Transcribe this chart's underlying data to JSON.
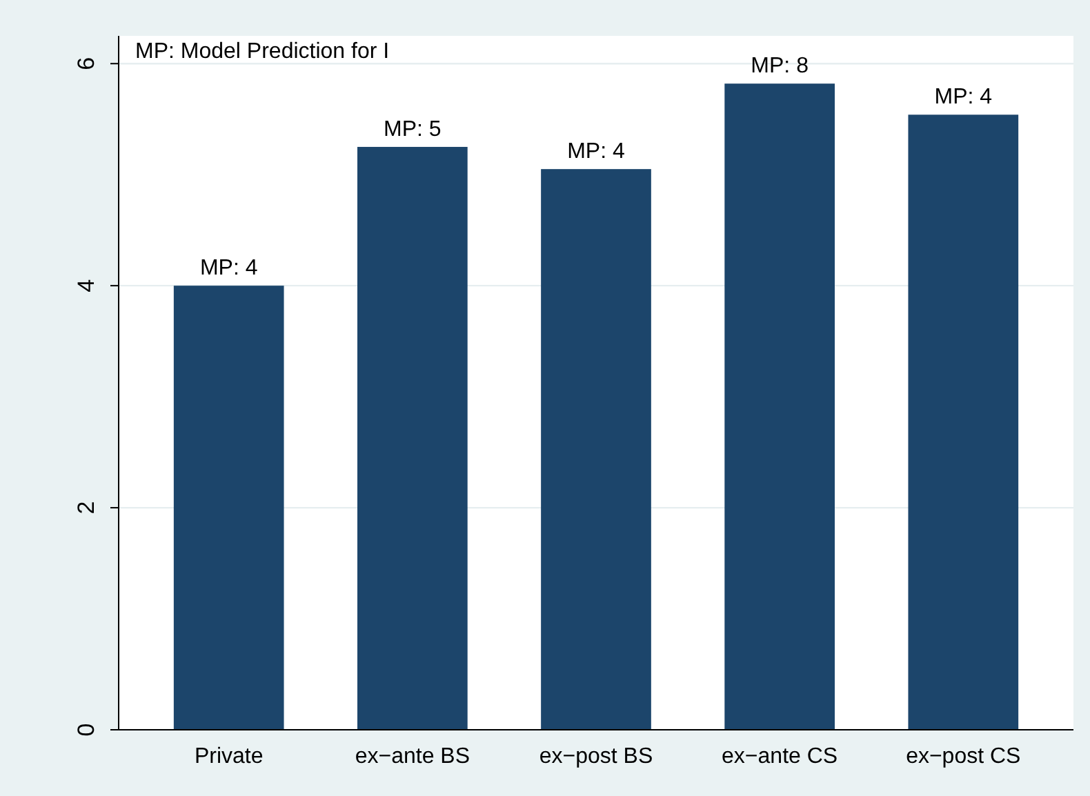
{
  "chart_data": {
    "type": "bar",
    "annotations": [
      "MP: Model Prediction for I",
      {
        "text": "MP: 4",
        "x": "Private",
        "y": 4.0
      },
      {
        "text": "MP: 5",
        "x": "ex−ante BS",
        "y": 5.25
      },
      {
        "text": "MP: 4",
        "x": "ex−post BS",
        "y": 5.05
      },
      {
        "text": "MP: 8",
        "x": "ex−ante CS",
        "y": 5.82
      },
      {
        "text": "MP: 4",
        "x": "ex−post CS",
        "y": 5.54
      }
    ],
    "categories": [
      "Private",
      "ex−ante BS",
      "ex−post BS",
      "ex−ante CS",
      "ex−post CS"
    ],
    "values": [
      4.0,
      5.25,
      5.05,
      5.82,
      5.54
    ],
    "color": "#1c456b",
    "ylim": [
      0,
      6.25
    ],
    "yticks": [
      0,
      2,
      4,
      6
    ],
    "grid": "y"
  }
}
